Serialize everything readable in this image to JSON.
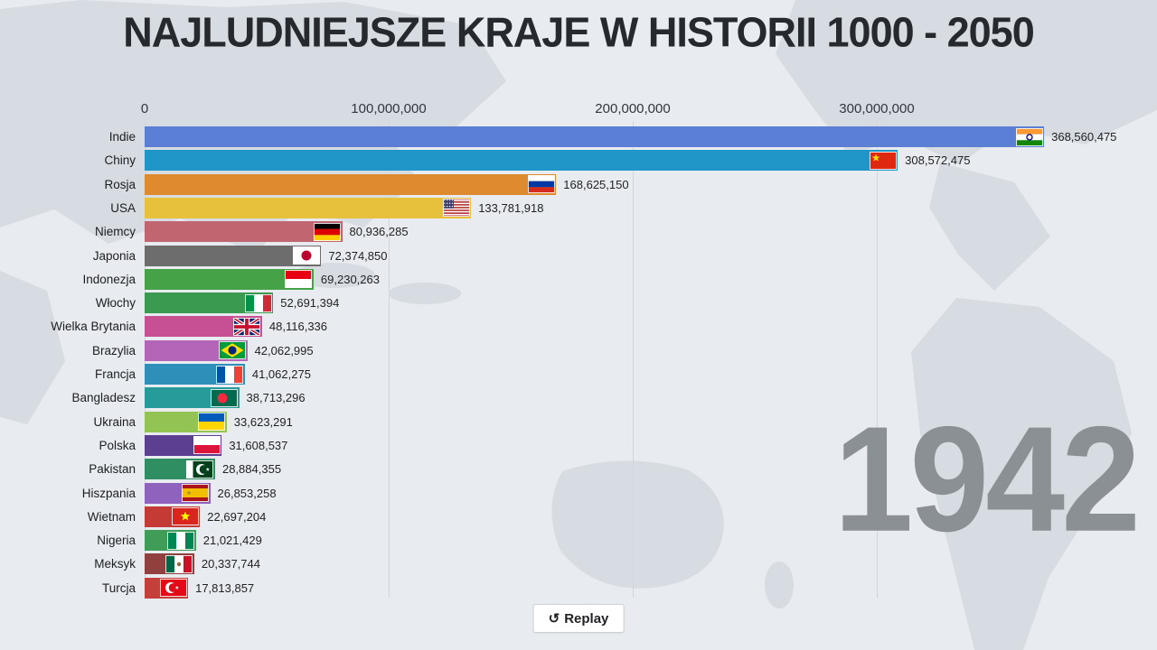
{
  "title": "NAJLUDNIEJSZE KRAJE W HISTORII 1000 - 2050",
  "year": "1942",
  "replay": {
    "icon": "↺",
    "label": "Replay"
  },
  "axis": {
    "ticks": [
      {
        "value": 0,
        "label": "0"
      },
      {
        "value": 100000000,
        "label": "100,000,000"
      },
      {
        "value": 200000000,
        "label": "200,000,000"
      },
      {
        "value": 300000000,
        "label": "300,000,000"
      }
    ]
  },
  "chart_data": {
    "type": "bar",
    "orientation": "horizontal",
    "title": "NAJLUDNIEJSZE KRAJE W HISTORII 1000 - 2050",
    "year_shown": 1942,
    "xlim": [
      0,
      375000000
    ],
    "grid": true,
    "categories": [
      "Indie",
      "Chiny",
      "Rosja",
      "USA",
      "Niemcy",
      "Japonia",
      "Indonezja",
      "Włochy",
      "Wielka Brytania",
      "Brazylia",
      "Francja",
      "Bangladesz",
      "Ukraina",
      "Polska",
      "Pakistan",
      "Hiszpania",
      "Wietnam",
      "Nigeria",
      "Meksyk",
      "Turcja"
    ],
    "values": [
      368560475,
      308572475,
      168625150,
      133781918,
      80936285,
      72374850,
      69230263,
      52691394,
      48116336,
      42062995,
      41062275,
      38713296,
      33623291,
      31608537,
      28884355,
      26853258,
      22697204,
      21021429,
      20337744,
      17813857
    ],
    "value_labels": [
      "368,560,475",
      "308,572,475",
      "168,625,150",
      "133,781,918",
      "80,936,285",
      "72,374,850",
      "69,230,263",
      "52,691,394",
      "48,116,336",
      "42,062,995",
      "41,062,275",
      "38,713,296",
      "33,623,291",
      "31,608,537",
      "28,884,355",
      "26,853,258",
      "22,697,204",
      "21,021,429",
      "20,337,744",
      "17,813,857"
    ],
    "colors": [
      "#5c7fd6",
      "#2095c8",
      "#de8a2e",
      "#e7c03c",
      "#c16570",
      "#6d6d6d",
      "#45a247",
      "#3a9a50",
      "#c75092",
      "#b465b8",
      "#2e8fb9",
      "#279a9a",
      "#92c353",
      "#5d3f92",
      "#2f8f63",
      "#8f63bd",
      "#c43a35",
      "#3f9d58",
      "#90403e",
      "#c4403a"
    ],
    "flags": [
      {
        "t": "h",
        "s": [
          "#ff9933",
          "#ffffff",
          "#138808"
        ],
        "e": {
          "k": "ring",
          "c": "#000080",
          "r": 3
        }
      },
      {
        "t": "solid",
        "s": [
          "#de2910"
        ],
        "e": {
          "k": "star",
          "c": "#ffde00",
          "x": 7,
          "y": 7,
          "r": 4.5
        }
      },
      {
        "t": "h",
        "s": [
          "#ffffff",
          "#0039a6",
          "#d52b1e"
        ]
      },
      {
        "t": "usa"
      },
      {
        "t": "h",
        "s": [
          "#000000",
          "#dd0000",
          "#ffce00"
        ]
      },
      {
        "t": "solid",
        "s": [
          "#ffffff"
        ],
        "e": {
          "k": "disc",
          "c": "#bc002d",
          "r": 5.5
        }
      },
      {
        "t": "h",
        "s": [
          "#e70011",
          "#ffffff"
        ]
      },
      {
        "t": "v",
        "s": [
          "#009246",
          "#ffffff",
          "#ce2b37"
        ]
      },
      {
        "t": "uk"
      },
      {
        "t": "brazil"
      },
      {
        "t": "v",
        "s": [
          "#0055a4",
          "#ffffff",
          "#ef4135"
        ]
      },
      {
        "t": "solid",
        "s": [
          "#006a4e"
        ],
        "e": {
          "k": "disc",
          "c": "#f42a41",
          "r": 5.5,
          "x": 13
        }
      },
      {
        "t": "h",
        "s": [
          "#005bbb",
          "#ffd500"
        ]
      },
      {
        "t": "h",
        "s": [
          "#ffffff",
          "#dc143c"
        ]
      },
      {
        "t": "v",
        "s": [
          "#ffffff",
          "#01411c"
        ],
        "w": [
          1,
          3
        ],
        "e": {
          "k": "crescent",
          "c": "#ffffff",
          "bg": "#01411c",
          "x": 17,
          "star": true
        }
      },
      {
        "t": "h",
        "s": [
          "#aa151b",
          "#f1bf00",
          "#aa151b"
        ],
        "w": [
          1,
          2,
          1
        ],
        "e": {
          "k": "disc",
          "c": "#ad8a28",
          "r": 1.6,
          "x": 8
        }
      },
      {
        "t": "solid",
        "s": [
          "#da251d"
        ],
        "e": {
          "k": "star",
          "c": "#ffff00",
          "r": 5.5
        }
      },
      {
        "t": "v",
        "s": [
          "#008751",
          "#ffffff",
          "#008751"
        ]
      },
      {
        "t": "v",
        "s": [
          "#006847",
          "#ffffff",
          "#ce1126"
        ],
        "e": {
          "k": "disc",
          "c": "#8a6d3b",
          "r": 2.2
        }
      },
      {
        "t": "solid",
        "s": [
          "#e30a17"
        ],
        "e": {
          "k": "crescent",
          "c": "#ffffff",
          "bg": "#e30a17",
          "x": 12,
          "star": true
        }
      }
    ]
  }
}
